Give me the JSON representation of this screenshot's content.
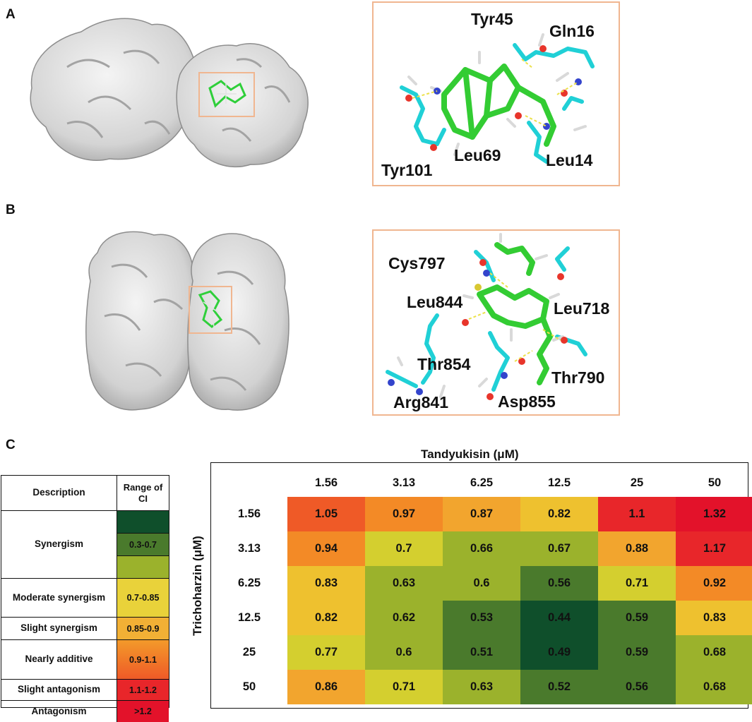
{
  "panels": {
    "a": {
      "letter": "A",
      "residues": [
        "Tyr45",
        "Gln16",
        "Tyr101",
        "Leu69",
        "Leu14"
      ]
    },
    "b": {
      "letter": "B",
      "residues": [
        "Cys797",
        "Leu844",
        "Leu718",
        "Thr854",
        "Thr790",
        "Arg841",
        "Asp855"
      ]
    },
    "c": {
      "letter": "C"
    }
  },
  "legend": {
    "header_description": "Description",
    "header_range": "Range of CI",
    "rows": [
      {
        "description": "Synergism",
        "range": "0.3-0.7",
        "colors": [
          "#0f4f2b",
          "#4a7a2c",
          "#9bb22c"
        ]
      },
      {
        "description": "Moderate synergism",
        "range": "0.7-0.85",
        "colors": [
          "#e9d23a"
        ]
      },
      {
        "description": "Slight synergism",
        "range": "0.85-0.9",
        "colors": [
          "#f2b035"
        ]
      },
      {
        "description": "Nearly additive",
        "range": "0.9-1.1",
        "colors": [
          "#f39a2a",
          "#ef5a27"
        ]
      },
      {
        "description": "Slight  antagonism",
        "range": "1.1-1.2",
        "colors": [
          "#e8262a"
        ]
      },
      {
        "description": "Antagonism",
        "range": ">1.2",
        "colors": [
          "#e3122a"
        ]
      }
    ]
  },
  "chart_data": {
    "type": "heatmap",
    "title": "",
    "xlabel": "Tandyukisin (μM)",
    "ylabel": "Trichoharzin (μM)",
    "x": [
      "1.56",
      "3.13",
      "6.25",
      "12.5",
      "25",
      "50"
    ],
    "y": [
      "1.56",
      "3.13",
      "6.25",
      "12.5",
      "25",
      "50"
    ],
    "values": [
      [
        "1.05",
        "0.97",
        "0.87",
        "0.82",
        "1.1",
        "1.32"
      ],
      [
        "0.94",
        "0.7",
        "0.66",
        "0.67",
        "0.88",
        "1.17"
      ],
      [
        "0.83",
        "0.63",
        "0.6",
        "0.56",
        "0.71",
        "0.92"
      ],
      [
        "0.82",
        "0.62",
        "0.53",
        "0.44",
        "0.59",
        "0.83"
      ],
      [
        "0.77",
        "0.6",
        "0.51",
        "0.49",
        "0.59",
        "0.68"
      ],
      [
        "0.86",
        "0.71",
        "0.63",
        "0.52",
        "0.56",
        "0.68"
      ]
    ],
    "colors": {
      "dark_green": "#0f4f2b",
      "green": "#4a7a2c",
      "olive": "#9bb22c",
      "yellow_green": "#d4cf2f",
      "yellow": "#eec12f",
      "light_orange": "#f2a52e",
      "orange": "#f38a26",
      "red_orange": "#ef5a27",
      "red": "#e8262a",
      "deep_red": "#e3122a"
    }
  }
}
